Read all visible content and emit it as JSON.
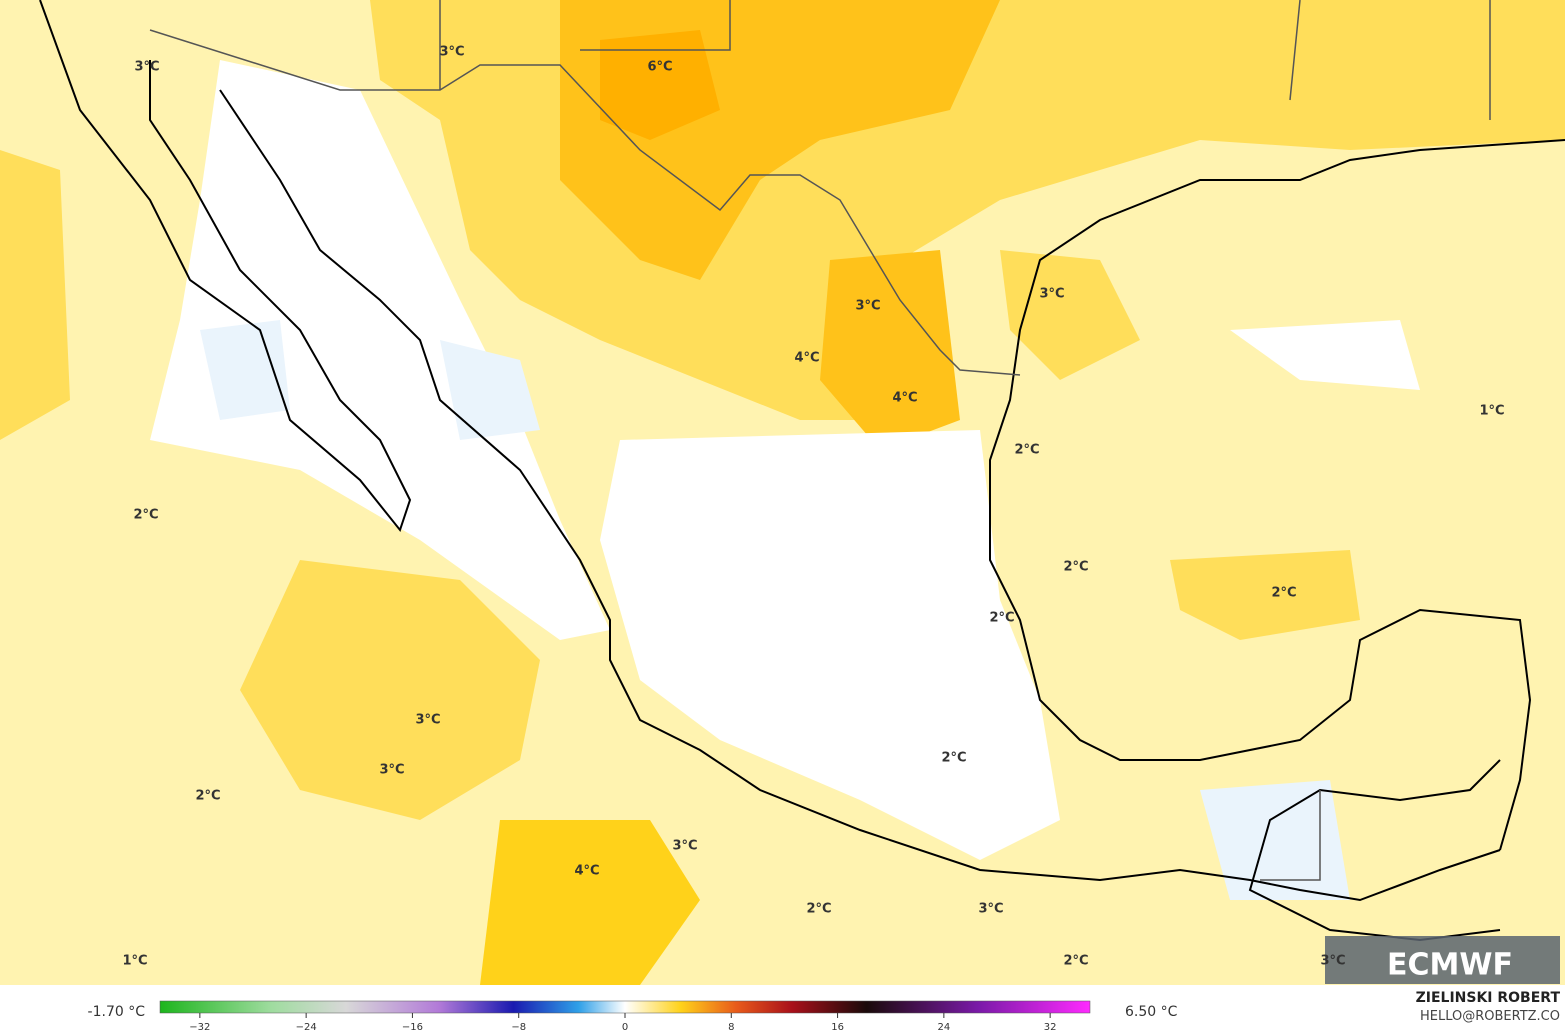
{
  "map": {
    "contour_labels": [
      "3°C",
      "3°C",
      "6°C",
      "3°C",
      "4°C",
      "4°C",
      "3°C",
      "1°C",
      "2°C",
      "2°C",
      "2°C",
      "2°C",
      "2°C",
      "3°C",
      "3°C",
      "2°C",
      "2°C",
      "3°C",
      "4°C",
      "2°C",
      "3°C",
      "1°C",
      "2°C",
      "3°C"
    ],
    "legend": {
      "min_label": "-1.70 °C",
      "max_label": "6.50 °C",
      "range": [
        -35,
        35
      ],
      "ticks": [
        {
          "value": -32,
          "label": "−32"
        },
        {
          "value": -24,
          "label": "−24"
        },
        {
          "value": -16,
          "label": "−16"
        },
        {
          "value": -8,
          "label": "−8"
        },
        0,
        8,
        16,
        24,
        32
      ]
    },
    "credit": {
      "name": "ZIELINSKI ROBERT",
      "email": "HELLO@ROBERTZ.CO"
    },
    "logo": "ECMWF"
  }
}
